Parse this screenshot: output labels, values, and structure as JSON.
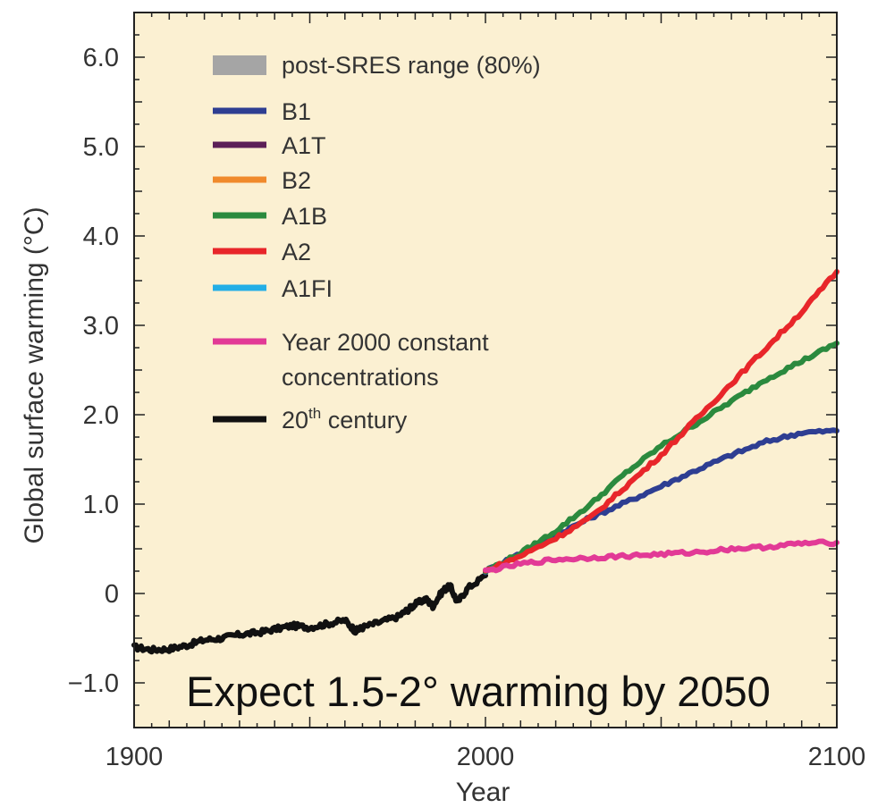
{
  "chart_data": {
    "type": "line",
    "xlabel": "Year",
    "ylabel": "Global surface warming (°C)",
    "xlim": [
      1900,
      2100
    ],
    "ylim": [
      -1.5,
      6.5
    ],
    "x_ticks": [
      "1900",
      "2000",
      "2100"
    ],
    "y_ticks": [
      "−1.0",
      "0",
      "1.0",
      "2.0",
      "3.0",
      "4.0",
      "5.0",
      "6.0"
    ],
    "background_color": "#fbf0d2",
    "annotation": "Expect 1.5-2° warming by 2050",
    "legend_position": "top-left",
    "legend": [
      {
        "label": "post-SRES range (80%)",
        "color": "#a5a5a5",
        "swatch": "box"
      },
      {
        "label": "B1",
        "color": "#2e3e92",
        "swatch": "line"
      },
      {
        "label": "A1T",
        "color": "#5c1f57",
        "swatch": "line"
      },
      {
        "label": "B2",
        "color": "#f08a2c",
        "swatch": "line"
      },
      {
        "label": "A1B",
        "color": "#2b8a3e",
        "swatch": "line"
      },
      {
        "label": "A2",
        "color": "#e8262a",
        "swatch": "line"
      },
      {
        "label": "A1FI",
        "color": "#23aee6",
        "swatch": "line"
      },
      {
        "label": "Year 2000 constant\nconcentrations",
        "color": "#e23a96",
        "swatch": "line"
      },
      {
        "label": "20th century",
        "color": "#111111",
        "swatch": "line",
        "superscript": "th"
      }
    ],
    "series": [
      {
        "name": "20th century",
        "color": "#111111",
        "x": [
          1900,
          1905,
          1910,
          1915,
          1920,
          1925,
          1930,
          1935,
          1940,
          1945,
          1950,
          1955,
          1960,
          1963,
          1965,
          1970,
          1975,
          1978,
          1980,
          1983,
          1985,
          1988,
          1990,
          1992,
          1995,
          2000
        ],
        "y": [
          -0.6,
          -0.63,
          -0.62,
          -0.58,
          -0.52,
          -0.5,
          -0.46,
          -0.44,
          -0.4,
          -0.36,
          -0.38,
          -0.34,
          -0.3,
          -0.42,
          -0.38,
          -0.32,
          -0.26,
          -0.18,
          -0.12,
          -0.06,
          -0.14,
          0.04,
          0.08,
          -0.1,
          0.06,
          0.2
        ]
      },
      {
        "name": "B1",
        "color": "#2e3e92",
        "x": [
          2000,
          2010,
          2020,
          2030,
          2040,
          2050,
          2060,
          2070,
          2080,
          2090,
          2100
        ],
        "y": [
          0.25,
          0.45,
          0.65,
          0.85,
          1.02,
          1.2,
          1.38,
          1.55,
          1.7,
          1.8,
          1.82
        ]
      },
      {
        "name": "A1B",
        "color": "#2b8a3e",
        "x": [
          2000,
          2010,
          2020,
          2030,
          2040,
          2050,
          2060,
          2070,
          2080,
          2090,
          2100
        ],
        "y": [
          0.25,
          0.45,
          0.7,
          1.0,
          1.35,
          1.65,
          1.9,
          2.15,
          2.4,
          2.6,
          2.8
        ]
      },
      {
        "name": "A2",
        "color": "#e8262a",
        "x": [
          2000,
          2010,
          2020,
          2030,
          2040,
          2050,
          2060,
          2070,
          2080,
          2090,
          2100
        ],
        "y": [
          0.25,
          0.42,
          0.62,
          0.85,
          1.2,
          1.55,
          1.95,
          2.35,
          2.75,
          3.15,
          3.6
        ]
      },
      {
        "name": "Year 2000 constant concentrations",
        "color": "#e23a96",
        "x": [
          2000,
          2010,
          2020,
          2030,
          2040,
          2050,
          2060,
          2070,
          2080,
          2090,
          2100
        ],
        "y": [
          0.25,
          0.33,
          0.38,
          0.4,
          0.42,
          0.44,
          0.46,
          0.5,
          0.52,
          0.56,
          0.57
        ]
      }
    ]
  }
}
